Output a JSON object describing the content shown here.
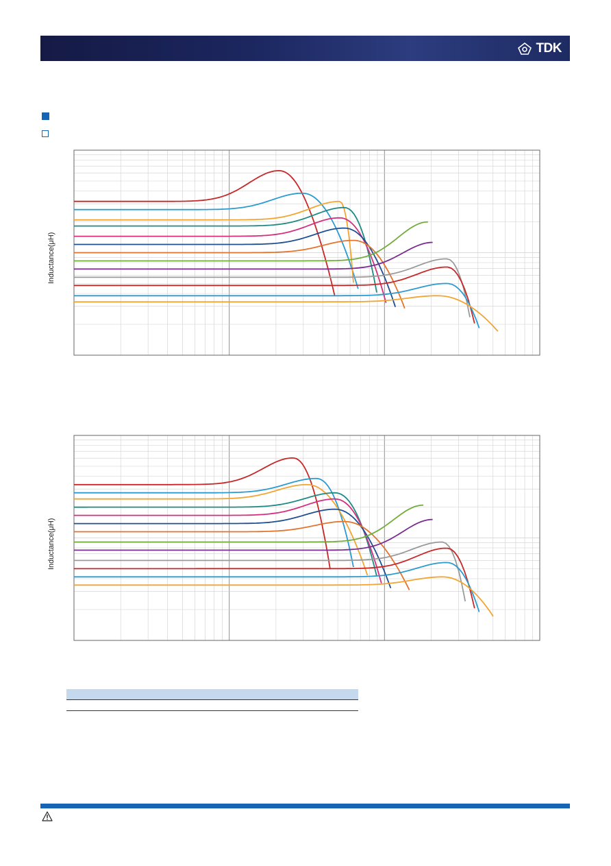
{
  "header": {
    "brand": "TDK",
    "brand_color": "#1c2760",
    "logo_icon": "tdk-logo-icon"
  },
  "section": {
    "bullet_color": "#1565b4"
  },
  "charts": {
    "chart_1": {
      "ylabel": "Inductance(μH)"
    },
    "chart_2": {
      "ylabel": "Inductance(μH)"
    }
  },
  "table": {
    "header_color": "#c5d9ee"
  },
  "footer": {
    "warning_icon": "warning-icon",
    "band_color": "#1565b4"
  },
  "chart_data": [
    {
      "type": "line",
      "ylabel": "Inductance(μH)",
      "x_scale": "log",
      "y_scale": "log",
      "grid": true,
      "x_decades": 3,
      "y_decades": 1,
      "series": [
        {
          "color": "#c62828",
          "base": 0.75,
          "peak": 0.15,
          "peak_x": 0.44,
          "end_x": 0.56
        },
        {
          "color": "#2b9ad1",
          "base": 0.71,
          "peak": 0.08,
          "peak_x": 0.49,
          "end_x": 0.61
        },
        {
          "color": "#f2a531",
          "base": 0.66,
          "peak": 0.09,
          "peak_x": 0.57,
          "end_x": 0.6
        },
        {
          "color": "#1f8a85",
          "base": 0.63,
          "peak": 0.09,
          "peak_x": 0.58,
          "end_x": 0.65
        },
        {
          "color": "#d42f7e",
          "base": 0.58,
          "peak": 0.09,
          "peak_x": 0.57,
          "end_x": 0.67
        },
        {
          "color": "#1f4e91",
          "base": 0.54,
          "peak": 0.08,
          "peak_x": 0.58,
          "end_x": 0.69
        },
        {
          "color": "#e4732b",
          "base": 0.5,
          "peak": 0.06,
          "peak_x": 0.6,
          "end_x": 0.71
        },
        {
          "color": "#72ad3c",
          "base": 0.46,
          "peak": 0.19,
          "peak_x": 0.76,
          "end_x": 0.76
        },
        {
          "color": "#7b2d8e",
          "base": 0.42,
          "peak": 0.13,
          "peak_x": 0.77,
          "end_x": 0.77
        },
        {
          "color": "#9a9a9a",
          "base": 0.38,
          "peak": 0.09,
          "peak_x": 0.8,
          "end_x": 0.85
        },
        {
          "color": "#c62828",
          "base": 0.34,
          "peak": 0.09,
          "peak_x": 0.8,
          "end_x": 0.86
        },
        {
          "color": "#2b9ad1",
          "base": 0.29,
          "peak": 0.06,
          "peak_x": 0.8,
          "end_x": 0.87
        },
        {
          "color": "#f2a531",
          "base": 0.26,
          "peak": 0.03,
          "peak_x": 0.78,
          "end_x": 0.91
        }
      ]
    },
    {
      "type": "line",
      "ylabel": "Inductance(μH)",
      "x_scale": "log",
      "y_scale": "log",
      "grid": true,
      "x_decades": 3,
      "y_decades": 1,
      "series": [
        {
          "color": "#c62828",
          "base": 0.76,
          "peak": 0.13,
          "peak_x": 0.47,
          "end_x": 0.55
        },
        {
          "color": "#2b9ad1",
          "base": 0.72,
          "peak": 0.07,
          "peak_x": 0.52,
          "end_x": 0.6
        },
        {
          "color": "#f2a531",
          "base": 0.69,
          "peak": 0.07,
          "peak_x": 0.5,
          "end_x": 0.63
        },
        {
          "color": "#1f8a85",
          "base": 0.65,
          "peak": 0.07,
          "peak_x": 0.56,
          "end_x": 0.65
        },
        {
          "color": "#d42f7e",
          "base": 0.61,
          "peak": 0.08,
          "peak_x": 0.56,
          "end_x": 0.66
        },
        {
          "color": "#1f4e91",
          "base": 0.57,
          "peak": 0.07,
          "peak_x": 0.56,
          "end_x": 0.68
        },
        {
          "color": "#e4732b",
          "base": 0.53,
          "peak": 0.05,
          "peak_x": 0.58,
          "end_x": 0.72
        },
        {
          "color": "#72ad3c",
          "base": 0.48,
          "peak": 0.18,
          "peak_x": 0.75,
          "end_x": 0.75
        },
        {
          "color": "#7b2d8e",
          "base": 0.44,
          "peak": 0.15,
          "peak_x": 0.77,
          "end_x": 0.77
        },
        {
          "color": "#9a9a9a",
          "base": 0.39,
          "peak": 0.09,
          "peak_x": 0.79,
          "end_x": 0.84
        },
        {
          "color": "#c62828",
          "base": 0.35,
          "peak": 0.1,
          "peak_x": 0.8,
          "end_x": 0.86
        },
        {
          "color": "#2b9ad1",
          "base": 0.31,
          "peak": 0.07,
          "peak_x": 0.8,
          "end_x": 0.87
        },
        {
          "color": "#f2a531",
          "base": 0.27,
          "peak": 0.04,
          "peak_x": 0.79,
          "end_x": 0.9
        }
      ]
    }
  ]
}
